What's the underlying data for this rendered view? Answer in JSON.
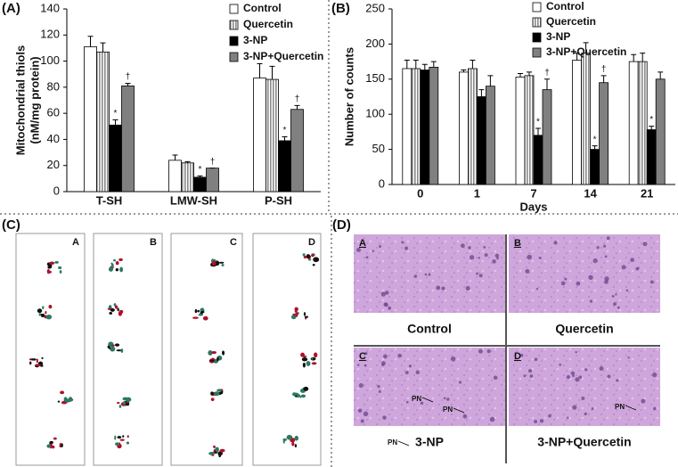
{
  "chart_data": [
    {
      "type": "bar",
      "panel_label": "(A)",
      "ylabel": [
        "Mitochondrial thiols",
        "(nM/mg protein)"
      ],
      "categories": [
        "T-SH",
        "LMW-SH",
        "P-SH"
      ],
      "series": [
        {
          "name": "Control",
          "color": "#ffffff",
          "values": [
            111,
            24,
            87
          ],
          "errors": [
            8,
            4,
            11
          ]
        },
        {
          "name": "Quercetin",
          "color": "#9a9a9a",
          "hatch": "vertical",
          "values": [
            107,
            22,
            86
          ],
          "errors": [
            7,
            1,
            10
          ]
        },
        {
          "name": "3-NP",
          "color": "#000000",
          "values": [
            51,
            11,
            39
          ],
          "errors": [
            4,
            1,
            3
          ],
          "markers": [
            "*",
            "*",
            "*"
          ]
        },
        {
          "name": "3-NP+Quercetin",
          "color": "#808080",
          "values": [
            81,
            18,
            63
          ],
          "errors": [
            2,
            0,
            3
          ],
          "markers": [
            "†",
            "†",
            "†"
          ]
        }
      ],
      "ylim": [
        0,
        140
      ],
      "yticks": [
        0,
        20,
        40,
        60,
        80,
        100,
        120,
        140
      ]
    },
    {
      "type": "bar",
      "panel_label": "(B)",
      "ylabel": [
        "Number of counts"
      ],
      "xlabel": "Days",
      "categories": [
        "0",
        "1",
        "7",
        "14",
        "21"
      ],
      "series": [
        {
          "name": "Control",
          "color": "#ffffff",
          "values": [
            165,
            160,
            153,
            177,
            175
          ],
          "errors": [
            12,
            3,
            5,
            10,
            10
          ]
        },
        {
          "name": "Quercetin",
          "color": "#9a9a9a",
          "hatch": "vertical",
          "values": [
            165,
            165,
            155,
            187,
            175
          ],
          "errors": [
            12,
            12,
            5,
            15,
            12
          ]
        },
        {
          "name": "3-NP",
          "color": "#000000",
          "values": [
            163,
            125,
            70,
            50,
            78
          ],
          "errors": [
            8,
            10,
            10,
            5,
            5
          ],
          "markers": [
            null,
            null,
            "*",
            "*",
            "*"
          ]
        },
        {
          "name": "3-NP+Quercetin",
          "color": "#808080",
          "values": [
            167,
            140,
            135,
            145,
            150
          ],
          "errors": [
            8,
            15,
            15,
            10,
            10
          ],
          "markers": [
            null,
            null,
            "†",
            "†",
            null
          ]
        }
      ],
      "ylim": [
        0,
        250
      ],
      "yticks": [
        0,
        50,
        100,
        150,
        200,
        250
      ]
    }
  ],
  "panel_c": {
    "label": "(C)",
    "strips": [
      "A",
      "B",
      "C",
      "D"
    ]
  },
  "panel_d": {
    "label": "(D)",
    "images": [
      {
        "letter": "A",
        "caption": "Control",
        "annotations": []
      },
      {
        "letter": "B",
        "caption": "Quercetin",
        "annotations": []
      },
      {
        "letter": "C",
        "caption": "3-NP",
        "annotations": [
          "PN",
          "PN",
          "PN"
        ]
      },
      {
        "letter": "D",
        "caption": "3-NP+Quercetin",
        "annotations": [
          "PN"
        ]
      }
    ]
  }
}
